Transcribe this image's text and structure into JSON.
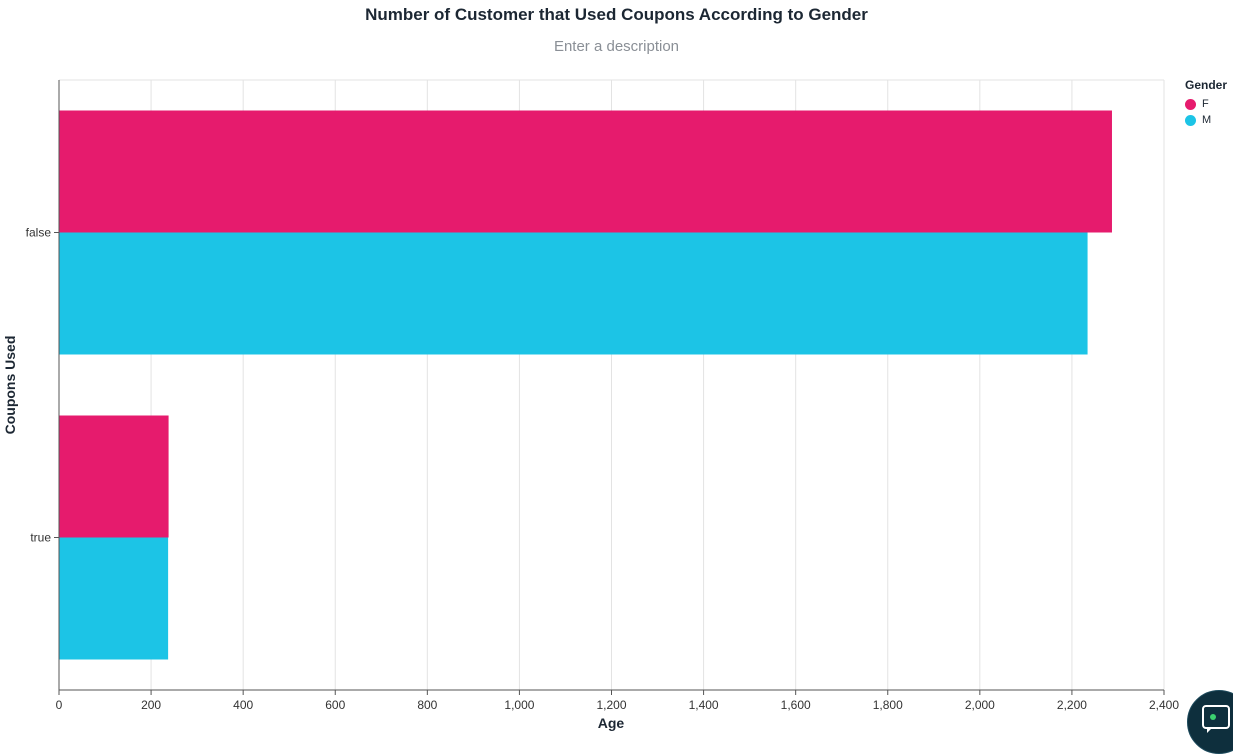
{
  "chart_data": {
    "type": "bar",
    "orientation": "horizontal",
    "title": "Number of Customer that Used Coupons According to Gender",
    "subtitle": "Enter a description",
    "xlabel": "Age",
    "ylabel": "Coupons Used",
    "categories": [
      "false",
      "true"
    ],
    "series": [
      {
        "name": "F",
        "color": "#e61b6d",
        "values": [
          2287,
          238
        ]
      },
      {
        "name": "M",
        "color": "#1cc4e6",
        "values": [
          2234,
          237
        ]
      }
    ],
    "xlim": [
      0,
      2400
    ],
    "xticks": [
      0,
      200,
      400,
      600,
      800,
      1000,
      1200,
      1400,
      1600,
      1800,
      2000,
      2200,
      2400
    ],
    "xtick_labels": [
      "0",
      "200",
      "400",
      "600",
      "800",
      "1,000",
      "1,200",
      "1,400",
      "1,600",
      "1,800",
      "2,000",
      "2,200",
      "2,400"
    ],
    "grid": true,
    "legend": {
      "title": "Gender",
      "position": "top-right"
    }
  },
  "chat_widget": {
    "icon": "chat-icon"
  }
}
